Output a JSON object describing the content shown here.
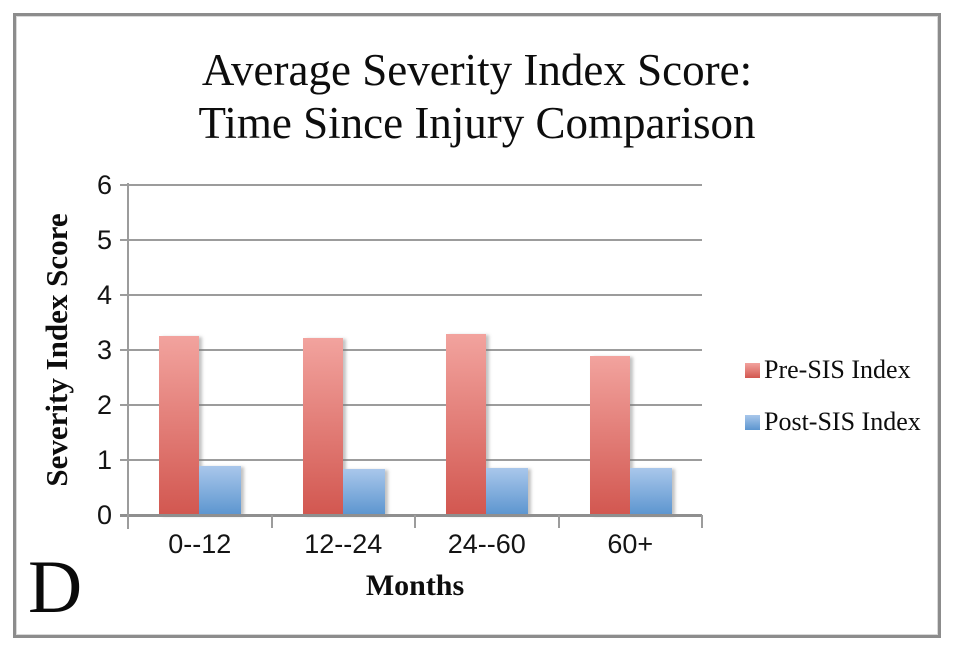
{
  "figure_label": "D",
  "title": {
    "line1": "Average Severity Index Score:",
    "line2": "Time Since Injury Comparison"
  },
  "axes": {
    "y_label": "Severity Index Score",
    "x_label": "Months",
    "y_ticks": [
      "6",
      "5",
      "4",
      "3",
      "2",
      "1",
      "0"
    ]
  },
  "chart_data": {
    "type": "bar",
    "title": "Average Severity Index Score: Time Since Injury Comparison",
    "categories": [
      "0--12",
      "12--24",
      "24--60",
      "60+"
    ],
    "series": [
      {
        "name": "Pre-SIS Index",
        "values": [
          3.25,
          3.22,
          3.3,
          2.9
        ],
        "color_top": "#f2a39e",
        "color_bottom": "#d25750",
        "legend_color": "#d4625b"
      },
      {
        "name": "Post-SIS Index",
        "values": [
          0.9,
          0.83,
          0.86,
          0.85
        ],
        "color_top": "#a9c7eb",
        "color_bottom": "#5c95cf",
        "legend_color": "#74a3d8"
      }
    ],
    "xlabel": "Months",
    "ylabel": "Severity Index Score",
    "ylim": [
      0,
      6
    ],
    "y_tick_step": 1,
    "grid": true,
    "legend_position": "right",
    "gridline_color": "#9c9c9c",
    "frame_border_color": "#8c8c8c"
  }
}
